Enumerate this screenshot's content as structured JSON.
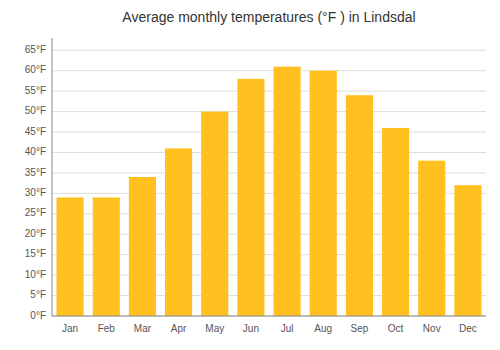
{
  "chart_data": {
    "type": "bar",
    "title": "Average monthly temperatures (°F ) in Lindsdal",
    "categories": [
      "Jan",
      "Feb",
      "Mar",
      "Apr",
      "May",
      "Jun",
      "Jul",
      "Aug",
      "Sep",
      "Oct",
      "Nov",
      "Dec"
    ],
    "values": [
      29,
      29,
      34,
      41,
      50,
      58,
      61,
      60,
      54,
      46,
      38,
      32
    ],
    "color": "#FFC020",
    "ylim": [
      0,
      68
    ],
    "yticks": [
      {
        "value": 0,
        "label": "0°F"
      },
      {
        "value": 5,
        "label": "5°F"
      },
      {
        "value": 10,
        "label": "10°F"
      },
      {
        "value": 15,
        "label": "15°F"
      },
      {
        "value": 20,
        "label": "20°F"
      },
      {
        "value": 25,
        "label": "25°F"
      },
      {
        "value": 30,
        "label": "30°F"
      },
      {
        "value": 35,
        "label": "35°F"
      },
      {
        "value": 40,
        "label": "40°F"
      },
      {
        "value": 45,
        "label": "45°F"
      },
      {
        "value": 50,
        "label": "50°F"
      },
      {
        "value": 55,
        "label": "55°F"
      },
      {
        "value": 60,
        "label": "60°F"
      },
      {
        "value": 65,
        "label": "65°F"
      }
    ],
    "grid": true
  }
}
